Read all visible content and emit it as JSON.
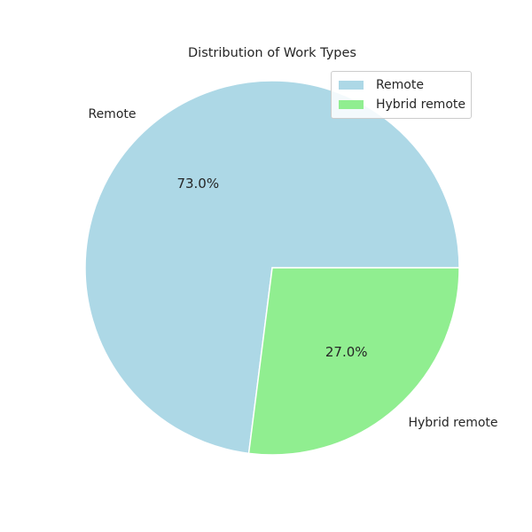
{
  "chart_data": {
    "type": "pie",
    "title": "Distribution of Work Types",
    "categories": [
      "Remote",
      "Hybrid remote"
    ],
    "values": [
      73.0,
      27.0
    ],
    "value_labels": [
      "73.0%",
      "27.0%"
    ],
    "colors": [
      "#add8e6",
      "#90ee90"
    ],
    "legend": {
      "placement": "top-right",
      "entries": [
        "Remote",
        "Hybrid remote"
      ]
    }
  }
}
